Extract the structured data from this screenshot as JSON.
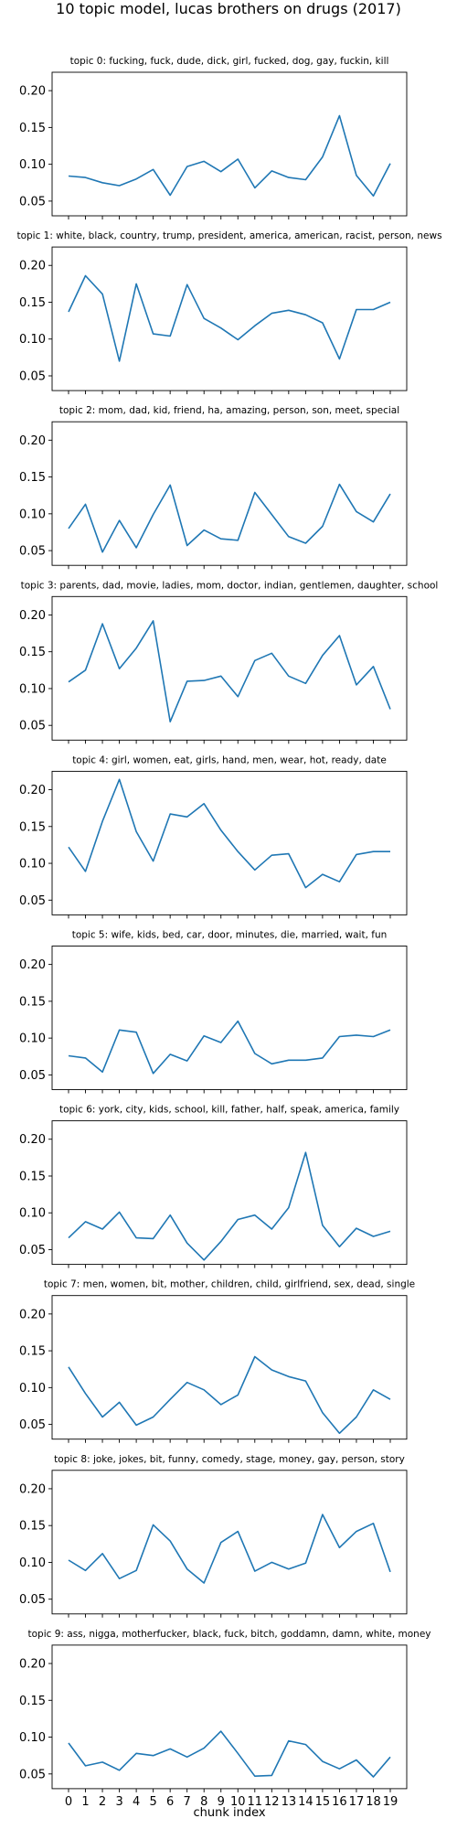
{
  "figure": {
    "title": "10 topic model, lucas brothers on drugs (2017)",
    "xlabel": "chunk index"
  },
  "chart_data": [
    {
      "type": "line",
      "title": "topic 0: fucking, fuck, dude, dick, girl, fucked, dog, gay, fuckin, kill",
      "x": [
        0,
        1,
        2,
        3,
        4,
        5,
        6,
        7,
        8,
        9,
        10,
        11,
        12,
        13,
        14,
        15,
        16,
        17,
        18,
        19
      ],
      "series": [
        {
          "values": [
            0.084,
            0.082,
            0.075,
            0.071,
            0.08,
            0.093,
            0.058,
            0.097,
            0.104,
            0.09,
            0.107,
            0.068,
            0.091,
            0.082,
            0.079,
            0.11,
            0.166,
            0.085,
            0.057,
            0.101
          ]
        }
      ],
      "ylim": [
        0.03,
        0.225
      ],
      "yticks": [
        0.05,
        0.1,
        0.15,
        0.2
      ],
      "ytick_labels": [
        "0.05",
        "0.10",
        "0.15",
        "0.20"
      ],
      "xticks": [
        0,
        1,
        2,
        3,
        4,
        5,
        6,
        7,
        8,
        9,
        10,
        11,
        12,
        13,
        14,
        15,
        16,
        17,
        18,
        19
      ],
      "xtick_labels_visible": false,
      "grid": false,
      "color": "#1f77b4"
    },
    {
      "type": "line",
      "title": "topic 1: white, black, country, trump, president, america, american, racist, person, news",
      "x": [
        0,
        1,
        2,
        3,
        4,
        5,
        6,
        7,
        8,
        9,
        10,
        11,
        12,
        13,
        14,
        15,
        16,
        17,
        18,
        19
      ],
      "series": [
        {
          "values": [
            0.137,
            0.186,
            0.161,
            0.07,
            0.175,
            0.107,
            0.104,
            0.174,
            0.128,
            0.115,
            0.099,
            0.118,
            0.135,
            0.139,
            0.133,
            0.122,
            0.073,
            0.14,
            0.14,
            0.15
          ]
        }
      ],
      "ylim": [
        0.03,
        0.225
      ],
      "yticks": [
        0.05,
        0.1,
        0.15,
        0.2
      ],
      "ytick_labels": [
        "0.05",
        "0.10",
        "0.15",
        "0.20"
      ],
      "xticks": [
        0,
        1,
        2,
        3,
        4,
        5,
        6,
        7,
        8,
        9,
        10,
        11,
        12,
        13,
        14,
        15,
        16,
        17,
        18,
        19
      ],
      "xtick_labels_visible": false,
      "grid": false,
      "color": "#1f77b4"
    },
    {
      "type": "line",
      "title": "topic 2: mom, dad, kid, friend, ha, amazing, person, son, meet, special",
      "x": [
        0,
        1,
        2,
        3,
        4,
        5,
        6,
        7,
        8,
        9,
        10,
        11,
        12,
        13,
        14,
        15,
        16,
        17,
        18,
        19
      ],
      "series": [
        {
          "values": [
            0.08,
            0.113,
            0.048,
            0.091,
            0.054,
            0.099,
            0.139,
            0.057,
            0.078,
            0.066,
            0.064,
            0.129,
            0.099,
            0.069,
            0.06,
            0.083,
            0.14,
            0.103,
            0.089,
            0.127
          ]
        }
      ],
      "ylim": [
        0.03,
        0.225
      ],
      "yticks": [
        0.05,
        0.1,
        0.15,
        0.2
      ],
      "ytick_labels": [
        "0.05",
        "0.10",
        "0.15",
        "0.20"
      ],
      "xticks": [
        0,
        1,
        2,
        3,
        4,
        5,
        6,
        7,
        8,
        9,
        10,
        11,
        12,
        13,
        14,
        15,
        16,
        17,
        18,
        19
      ],
      "xtick_labels_visible": false,
      "grid": false,
      "color": "#1f77b4"
    },
    {
      "type": "line",
      "title": "topic 3: parents, dad, movie, ladies, mom, doctor, indian, gentlemen, daughter, school",
      "x": [
        0,
        1,
        2,
        3,
        4,
        5,
        6,
        7,
        8,
        9,
        10,
        11,
        12,
        13,
        14,
        15,
        16,
        17,
        18,
        19
      ],
      "series": [
        {
          "values": [
            0.109,
            0.125,
            0.188,
            0.127,
            0.155,
            0.192,
            0.055,
            0.11,
            0.111,
            0.117,
            0.089,
            0.138,
            0.148,
            0.117,
            0.107,
            0.145,
            0.172,
            0.105,
            0.13,
            0.072
          ]
        }
      ],
      "ylim": [
        0.03,
        0.225
      ],
      "yticks": [
        0.05,
        0.1,
        0.15,
        0.2
      ],
      "ytick_labels": [
        "0.05",
        "0.10",
        "0.15",
        "0.20"
      ],
      "xticks": [
        0,
        1,
        2,
        3,
        4,
        5,
        6,
        7,
        8,
        9,
        10,
        11,
        12,
        13,
        14,
        15,
        16,
        17,
        18,
        19
      ],
      "xtick_labels_visible": false,
      "grid": false,
      "color": "#1f77b4"
    },
    {
      "type": "line",
      "title": "topic 4: girl, women, eat, girls, hand, men, wear, hot, ready, date",
      "x": [
        0,
        1,
        2,
        3,
        4,
        5,
        6,
        7,
        8,
        9,
        10,
        11,
        12,
        13,
        14,
        15,
        16,
        17,
        18,
        19
      ],
      "series": [
        {
          "values": [
            0.122,
            0.089,
            0.157,
            0.214,
            0.143,
            0.103,
            0.167,
            0.163,
            0.181,
            0.145,
            0.116,
            0.091,
            0.111,
            0.113,
            0.067,
            0.085,
            0.075,
            0.112,
            0.116,
            0.116
          ]
        }
      ],
      "ylim": [
        0.03,
        0.225
      ],
      "yticks": [
        0.05,
        0.1,
        0.15,
        0.2
      ],
      "ytick_labels": [
        "0.05",
        "0.10",
        "0.15",
        "0.20"
      ],
      "xticks": [
        0,
        1,
        2,
        3,
        4,
        5,
        6,
        7,
        8,
        9,
        10,
        11,
        12,
        13,
        14,
        15,
        16,
        17,
        18,
        19
      ],
      "xtick_labels_visible": false,
      "grid": false,
      "color": "#1f77b4"
    },
    {
      "type": "line",
      "title": "topic 5: wife, kids, bed, car, door, minutes, die, married, wait, fun",
      "x": [
        0,
        1,
        2,
        3,
        4,
        5,
        6,
        7,
        8,
        9,
        10,
        11,
        12,
        13,
        14,
        15,
        16,
        17,
        18,
        19
      ],
      "series": [
        {
          "values": [
            0.076,
            0.073,
            0.054,
            0.111,
            0.108,
            0.052,
            0.078,
            0.069,
            0.103,
            0.094,
            0.123,
            0.079,
            0.065,
            0.07,
            0.07,
            0.073,
            0.102,
            0.104,
            0.102,
            0.111
          ]
        }
      ],
      "ylim": [
        0.03,
        0.225
      ],
      "yticks": [
        0.05,
        0.1,
        0.15,
        0.2
      ],
      "ytick_labels": [
        "0.05",
        "0.10",
        "0.15",
        "0.20"
      ],
      "xticks": [
        0,
        1,
        2,
        3,
        4,
        5,
        6,
        7,
        8,
        9,
        10,
        11,
        12,
        13,
        14,
        15,
        16,
        17,
        18,
        19
      ],
      "xtick_labels_visible": false,
      "grid": false,
      "color": "#1f77b4"
    },
    {
      "type": "line",
      "title": "topic 6: york, city, kids, school, kill, father, half, speak, america, family",
      "x": [
        0,
        1,
        2,
        3,
        4,
        5,
        6,
        7,
        8,
        9,
        10,
        11,
        12,
        13,
        14,
        15,
        16,
        17,
        18,
        19
      ],
      "series": [
        {
          "values": [
            0.066,
            0.088,
            0.078,
            0.101,
            0.066,
            0.065,
            0.097,
            0.059,
            0.036,
            0.061,
            0.091,
            0.097,
            0.078,
            0.107,
            0.182,
            0.083,
            0.054,
            0.079,
            0.068,
            0.075
          ]
        }
      ],
      "ylim": [
        0.03,
        0.225
      ],
      "yticks": [
        0.05,
        0.1,
        0.15,
        0.2
      ],
      "ytick_labels": [
        "0.05",
        "0.10",
        "0.15",
        "0.20"
      ],
      "xticks": [
        0,
        1,
        2,
        3,
        4,
        5,
        6,
        7,
        8,
        9,
        10,
        11,
        12,
        13,
        14,
        15,
        16,
        17,
        18,
        19
      ],
      "xtick_labels_visible": false,
      "grid": false,
      "color": "#1f77b4"
    },
    {
      "type": "line",
      "title": "topic 7: men, women, bit, mother, children, child, girlfriend, sex, dead, single",
      "x": [
        0,
        1,
        2,
        3,
        4,
        5,
        6,
        7,
        8,
        9,
        10,
        11,
        12,
        13,
        14,
        15,
        16,
        17,
        18,
        19
      ],
      "series": [
        {
          "values": [
            0.128,
            0.092,
            0.06,
            0.08,
            0.049,
            0.06,
            0.084,
            0.107,
            0.097,
            0.077,
            0.09,
            0.142,
            0.124,
            0.115,
            0.109,
            0.066,
            0.038,
            0.06,
            0.097,
            0.084
          ]
        }
      ],
      "ylim": [
        0.03,
        0.225
      ],
      "yticks": [
        0.05,
        0.1,
        0.15,
        0.2
      ],
      "ytick_labels": [
        "0.05",
        "0.10",
        "0.15",
        "0.20"
      ],
      "xticks": [
        0,
        1,
        2,
        3,
        4,
        5,
        6,
        7,
        8,
        9,
        10,
        11,
        12,
        13,
        14,
        15,
        16,
        17,
        18,
        19
      ],
      "xtick_labels_visible": false,
      "grid": false,
      "color": "#1f77b4"
    },
    {
      "type": "line",
      "title": "topic 8: joke, jokes, bit, funny, comedy, stage, money, gay, person, story",
      "x": [
        0,
        1,
        2,
        3,
        4,
        5,
        6,
        7,
        8,
        9,
        10,
        11,
        12,
        13,
        14,
        15,
        16,
        17,
        18,
        19
      ],
      "series": [
        {
          "values": [
            0.103,
            0.089,
            0.112,
            0.078,
            0.089,
            0.151,
            0.129,
            0.091,
            0.072,
            0.127,
            0.142,
            0.088,
            0.1,
            0.091,
            0.099,
            0.165,
            0.12,
            0.142,
            0.153,
            0.087
          ]
        }
      ],
      "ylim": [
        0.03,
        0.225
      ],
      "yticks": [
        0.05,
        0.1,
        0.15,
        0.2
      ],
      "ytick_labels": [
        "0.05",
        "0.10",
        "0.15",
        "0.20"
      ],
      "xticks": [
        0,
        1,
        2,
        3,
        4,
        5,
        6,
        7,
        8,
        9,
        10,
        11,
        12,
        13,
        14,
        15,
        16,
        17,
        18,
        19
      ],
      "xtick_labels_visible": false,
      "grid": false,
      "color": "#1f77b4"
    },
    {
      "type": "line",
      "title": "topic 9: ass, nigga, motherfucker, black, fuck, bitch, goddamn, damn, white, money",
      "x": [
        0,
        1,
        2,
        3,
        4,
        5,
        6,
        7,
        8,
        9,
        10,
        11,
        12,
        13,
        14,
        15,
        16,
        17,
        18,
        19
      ],
      "series": [
        {
          "values": [
            0.092,
            0.061,
            0.066,
            0.055,
            0.078,
            0.075,
            0.084,
            0.073,
            0.085,
            0.108,
            0.078,
            0.047,
            0.048,
            0.095,
            0.09,
            0.067,
            0.057,
            0.069,
            0.046,
            0.073
          ]
        }
      ],
      "ylim": [
        0.03,
        0.225
      ],
      "yticks": [
        0.05,
        0.1,
        0.15,
        0.2
      ],
      "ytick_labels": [
        "0.05",
        "0.10",
        "0.15",
        "0.20"
      ],
      "xticks": [
        0,
        1,
        2,
        3,
        4,
        5,
        6,
        7,
        8,
        9,
        10,
        11,
        12,
        13,
        14,
        15,
        16,
        17,
        18,
        19
      ],
      "xtick_labels_visible": true,
      "xtick_labels": [
        "0",
        "1",
        "2",
        "3",
        "4",
        "5",
        "6",
        "7",
        "8",
        "9",
        "10",
        "11",
        "12",
        "13",
        "14",
        "15",
        "16",
        "17",
        "18",
        "19"
      ],
      "grid": false,
      "color": "#1f77b4"
    }
  ]
}
